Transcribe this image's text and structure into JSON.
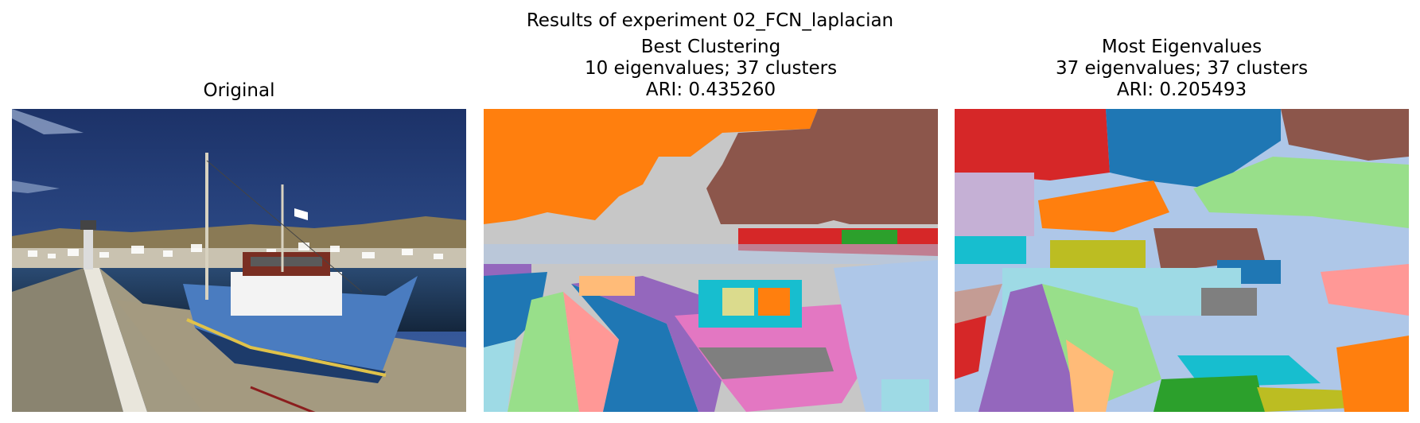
{
  "suptitle": "Results of experiment 02_FCN_laplacian",
  "panels": [
    {
      "id": "original",
      "title_lines": [
        "Original"
      ]
    },
    {
      "id": "best",
      "title_lines": [
        "Best Clustering",
        "10 eigenvalues; 37 clusters",
        "ARI: 0.435260"
      ],
      "eigenvalues": 10,
      "clusters": 37,
      "ari": 0.43526
    },
    {
      "id": "most",
      "title_lines": [
        "Most Eigenvalues",
        "37 eigenvalues; 37 clusters",
        "ARI: 0.205493"
      ],
      "eigenvalues": 37,
      "clusters": 37,
      "ari": 0.205493
    }
  ],
  "colors": {
    "tab_blue": "#1f77b4",
    "tab_lightblue": "#aec7e8",
    "tab_orange": "#ff7f0e",
    "tab_lightorange": "#ffbb78",
    "tab_green": "#2ca02c",
    "tab_lightgreen": "#98df8a",
    "tab_red": "#d62728",
    "tab_pink": "#ff9896",
    "tab_purple": "#9467bd",
    "tab_lavender": "#c5b0d5",
    "tab_brown": "#8c564b",
    "tab_rose": "#c49c94",
    "tab_magenta": "#e377c2",
    "tab_lightpink": "#f7b6d2",
    "tab_gray": "#7f7f7f",
    "tab_silver": "#c7c7c7",
    "tab_olive": "#bcbd22",
    "tab_khaki": "#dbdb8d",
    "tab_cyan": "#17becf",
    "tab_lightcyan": "#9edae5"
  }
}
